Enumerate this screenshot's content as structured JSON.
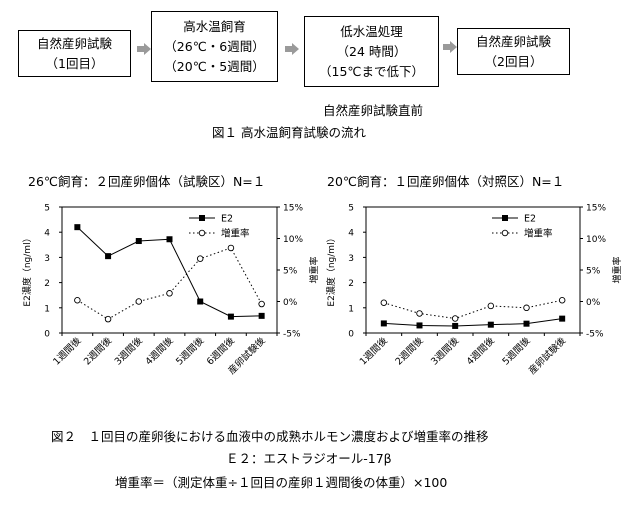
{
  "flow": {
    "boxes": [
      {
        "lines": [
          "自然産卵試験",
          "（1回目）"
        ]
      },
      {
        "lines": [
          "高水温飼育",
          "（26℃・6週間）",
          "（20℃・5週間）"
        ]
      },
      {
        "lines": [
          "低水温処理",
          "（24 時間）",
          "（15℃まで低下）"
        ]
      },
      {
        "lines": [
          "自然産卵試験",
          "（2回目）"
        ]
      }
    ],
    "note": "自然産卵試験直前",
    "caption": "図１  高水温飼育試験の流れ"
  },
  "chart_data": [
    {
      "type": "line",
      "title": "26℃飼育：２回産卵個体（試験区）N=１",
      "categories": [
        "1週間後",
        "2週間後",
        "3週間後",
        "4週間後",
        "5週間後",
        "6週間後",
        "産卵試験後"
      ],
      "ylabel": "E2濃度（ng/ml）",
      "y2label": "増重率",
      "ylim": [
        0,
        5
      ],
      "y2lim": [
        -5,
        15
      ],
      "yticks": [
        "0",
        "1",
        "2",
        "3",
        "4",
        "5"
      ],
      "y2ticks": [
        "-5%",
        "0%",
        "5%",
        "10%",
        "15%"
      ],
      "legend_position": "top-right",
      "series": [
        {
          "name": "E2",
          "axis": "left",
          "marker": "square",
          "style": "solid",
          "values": [
            4.2,
            3.05,
            3.65,
            3.72,
            1.25,
            0.65,
            0.68
          ]
        },
        {
          "name": "増重率",
          "axis": "right",
          "marker": "circle",
          "style": "dotted",
          "values": [
            0.2,
            -2.8,
            0.0,
            1.3,
            6.8,
            8.5,
            -0.4
          ]
        }
      ]
    },
    {
      "type": "line",
      "title": "20℃飼育：１回産卵個体（対照区）N=１",
      "categories": [
        "1週間後",
        "2週間後",
        "3週間後",
        "4週間後",
        "5週間後",
        "産卵試験後"
      ],
      "ylabel": "E2濃度（ng/ml）",
      "y2label": "増重率",
      "ylim": [
        0,
        5
      ],
      "y2lim": [
        -5,
        15
      ],
      "yticks": [
        "0",
        "1",
        "2",
        "3",
        "4",
        "5"
      ],
      "y2ticks": [
        "-5%",
        "0%",
        "5%",
        "10%",
        "15%"
      ],
      "legend_position": "top-right",
      "series": [
        {
          "name": "E2",
          "axis": "left",
          "marker": "square",
          "style": "solid",
          "values": [
            0.38,
            0.3,
            0.28,
            0.33,
            0.37,
            0.57
          ]
        },
        {
          "name": "増重率",
          "axis": "right",
          "marker": "circle",
          "style": "dotted",
          "values": [
            -0.2,
            -1.9,
            -2.7,
            -0.7,
            -1.0,
            0.2
          ]
        }
      ]
    }
  ],
  "captions": {
    "fig2": "図２　１回目の産卵後における血液中の成熟ホルモン濃度および増重率の推移",
    "e2_def": "Ｅ２：エストラジオール-17β",
    "rate_def": "増重率＝（測定体重÷１回目の産卵１週間後の体重）×100"
  },
  "colors": {
    "line": "#000000",
    "arrow": "#9a9a9a"
  }
}
